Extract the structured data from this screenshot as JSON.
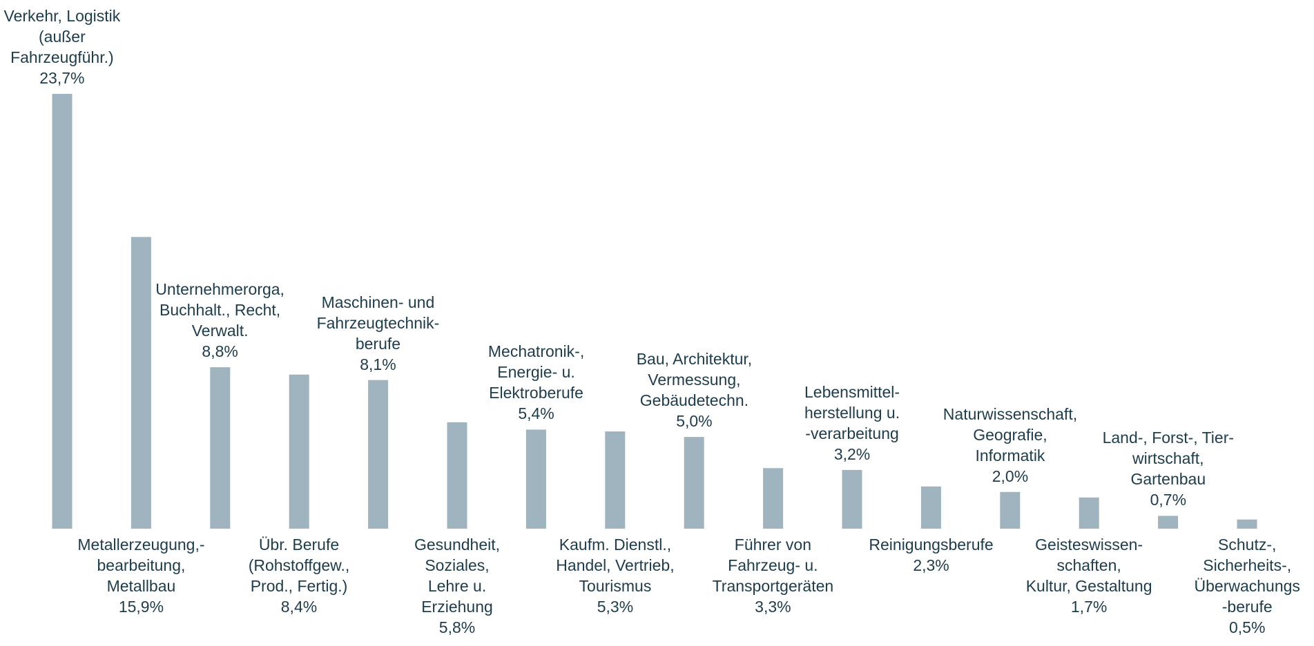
{
  "chart_data": {
    "type": "bar",
    "categories": [
      "Verkehr, Logistik\n(außer\nFahrzeugführ.)",
      "Metallerzeugung,-\nbearbeitung,\nMetallbau",
      "Unternehmerorga,\nBuchhalt., Recht,\nVerwalt.",
      "Übr. Berufe\n(Rohstoffgew.,\nProd., Fertig.)",
      "Maschinen- und\nFahrzeugtechnik-\nberufe",
      "Gesundheit,\nSoziales,\nLehre u.\nErziehung",
      "Mechatronik-,\nEnergie- u.\nElektroberufe",
      "Kaufm. Dienstl.,\nHandel, Vertrieb,\nTourismus",
      "Bau, Architektur,\nVermessung,\nGebäudetechn.",
      "Führer von\nFahrzeug- u.\nTransportgeräten",
      "Lebensmittel-\nherstellung u.\n-verarbeitung",
      "Reinigungsberufe",
      "Naturwissenschaft,\nGeografie,\nInformatik",
      "Geisteswissen-\nschaften,\nKultur, Gestaltung",
      "Land-, Forst-, Tier-\nwirtschaft,\nGartenbau",
      "Schutz-,\nSicherheits-,\nÜberwachungs\n-berufe"
    ],
    "values": [
      23.7,
      15.9,
      8.8,
      8.4,
      8.1,
      5.8,
      5.4,
      5.3,
      5.0,
      3.3,
      3.2,
      2.3,
      2.0,
      1.7,
      0.7,
      0.5
    ],
    "value_labels": [
      "23,7%",
      "15,9%",
      "8,8%",
      "8,4%",
      "8,1%",
      "5,8%",
      "5,4%",
      "5,3%",
      "5,0%",
      "3,3%",
      "3,2%",
      "2,3%",
      "2,0%",
      "1,7%",
      "0,7%",
      "0,5%"
    ],
    "color": "#9fb4be"
  }
}
